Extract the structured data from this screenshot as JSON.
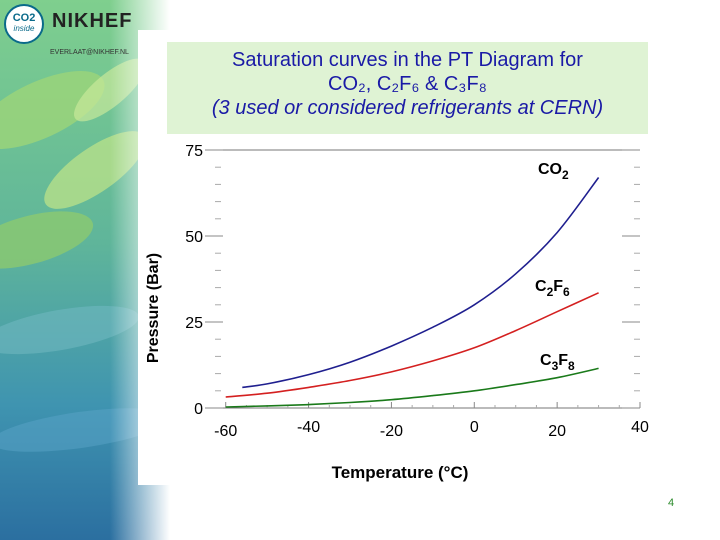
{
  "logo": {
    "co2_top": "CO2",
    "co2_bottom": "inside",
    "nikhef": "NIKHEF",
    "email": "EVERLAAT@NIKHEF.NL"
  },
  "title": {
    "line1": "Saturation curves in the PT Diagram for",
    "line2": "CO₂, C₂F₆ & C₃F₈",
    "line3": "(3 used or considered refrigerants at CERN)"
  },
  "page_number": "4",
  "colors": {
    "title_text": "#1a1aa6",
    "title_bg": "#dff3d4",
    "co2": "#1f1f8f",
    "c2f6": "#d42020",
    "c3f8": "#1a7a1a"
  },
  "chart_data": {
    "type": "line",
    "title": "Saturation curves in the PT Diagram for CO₂, C₂F₆ & C₃F₈",
    "xlabel": "Temperature (°C)",
    "ylabel": "Pressure (Bar)",
    "xlim": [
      -65,
      40
    ],
    "ylim": [
      0,
      75
    ],
    "x_ticks": [
      "-60",
      "-40",
      "-20",
      "0",
      "20",
      "40"
    ],
    "y_ticks": [
      "0",
      "25",
      "50",
      "75"
    ],
    "grid": false,
    "series": [
      {
        "name": "CO₂",
        "x": [
          -56,
          -50,
          -40,
          -30,
          -20,
          -10,
          0,
          10,
          20,
          30
        ],
        "y": [
          6.0,
          7.0,
          9.7,
          13.3,
          18.0,
          23.5,
          30.0,
          39.0,
          51.0,
          67.0
        ]
      },
      {
        "name": "C₂F₆",
        "x": [
          -60,
          -50,
          -40,
          -30,
          -20,
          -10,
          0,
          10,
          20,
          30
        ],
        "y": [
          3.2,
          4.3,
          6.0,
          8.0,
          10.5,
          13.7,
          17.5,
          22.5,
          28.0,
          33.5
        ]
      },
      {
        "name": "C₃F₈",
        "x": [
          -60,
          -50,
          -40,
          -30,
          -20,
          -10,
          0,
          10,
          20,
          30
        ],
        "y": [
          0.3,
          0.6,
          1.0,
          1.6,
          2.4,
          3.6,
          5.0,
          6.8,
          8.8,
          11.5
        ]
      }
    ]
  }
}
